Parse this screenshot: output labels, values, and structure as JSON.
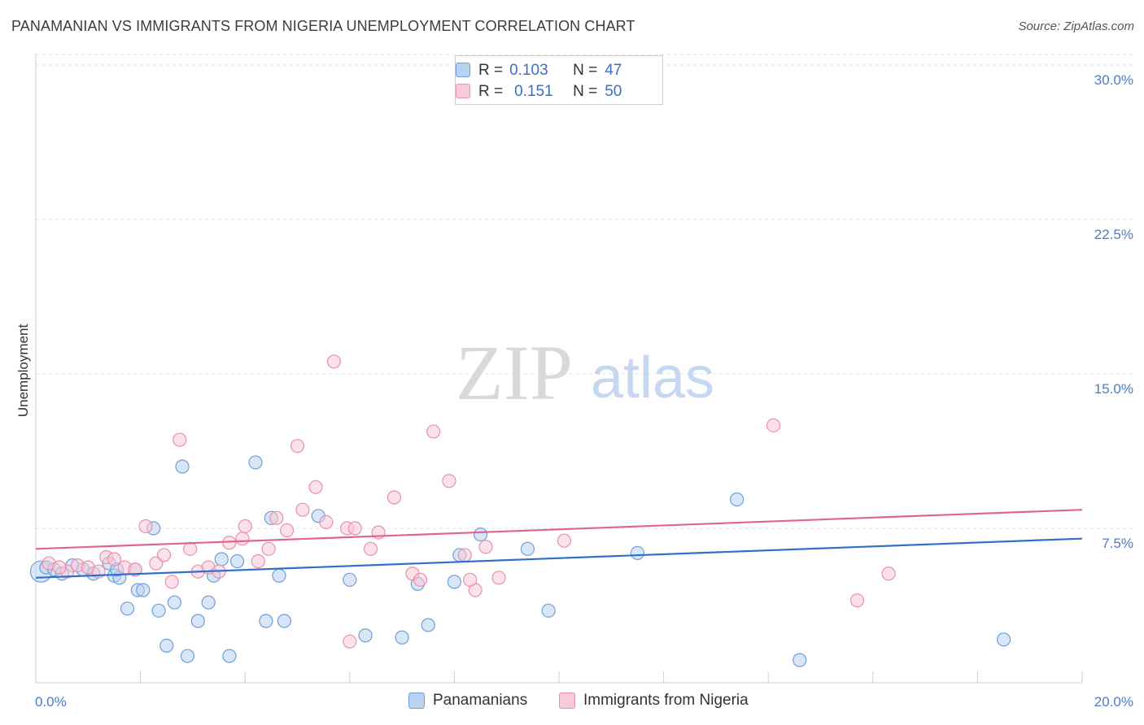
{
  "title": "PANAMANIAN VS IMMIGRANTS FROM NIGERIA UNEMPLOYMENT CORRELATION CHART",
  "source": "Source: ZipAtlas.com",
  "watermark": {
    "zip": "ZIP",
    "atlas": "atlas"
  },
  "legend_top": [
    {
      "r_label": "R =",
      "r_value": "0.103",
      "n_label": "N =",
      "n_value": "47"
    },
    {
      "r_label": "R =",
      "r_value": "0.151",
      "n_label": "N =",
      "n_value": "50"
    }
  ],
  "chart_data": {
    "type": "scatter",
    "title": "PANAMANIAN VS IMMIGRANTS FROM NIGERIA UNEMPLOYMENT CORRELATION CHART",
    "xlabel": "",
    "ylabel": "Unemployment",
    "xlim": [
      0,
      20
    ],
    "ylim": [
      0,
      30.5
    ],
    "x_tick_labels": {
      "start": "0.0%",
      "end": "20.0%"
    },
    "y_ticks": [
      {
        "value": 7.5,
        "label": "7.5%"
      },
      {
        "value": 15.0,
        "label": "15.0%"
      },
      {
        "value": 22.5,
        "label": "22.5%"
      },
      {
        "value": 30.0,
        "label": "30.0%"
      }
    ],
    "grid": true,
    "series": [
      {
        "name": "Panamanians",
        "color": "#6e9fd9",
        "fill": "#b9d2f1",
        "trend_color": "#2f6fcc",
        "trend": {
          "x": [
            0,
            20
          ],
          "y": [
            5.1,
            7.0
          ]
        },
        "points": [
          {
            "x": 0.1,
            "y": 5.4,
            "big": true
          },
          {
            "x": 0.2,
            "y": 5.6
          },
          {
            "x": 0.35,
            "y": 5.5
          },
          {
            "x": 0.5,
            "y": 5.3
          },
          {
            "x": 0.7,
            "y": 5.7
          },
          {
            "x": 0.9,
            "y": 5.5
          },
          {
            "x": 1.1,
            "y": 5.3
          },
          {
            "x": 1.4,
            "y": 5.8
          },
          {
            "x": 1.5,
            "y": 5.2
          },
          {
            "x": 1.6,
            "y": 5.1
          },
          {
            "x": 1.55,
            "y": 5.5
          },
          {
            "x": 1.9,
            "y": 5.5
          },
          {
            "x": 1.75,
            "y": 3.6
          },
          {
            "x": 1.95,
            "y": 4.5
          },
          {
            "x": 2.05,
            "y": 4.5
          },
          {
            "x": 2.25,
            "y": 7.5
          },
          {
            "x": 2.35,
            "y": 3.5
          },
          {
            "x": 2.5,
            "y": 1.8
          },
          {
            "x": 2.65,
            "y": 3.9
          },
          {
            "x": 2.8,
            "y": 10.5
          },
          {
            "x": 2.9,
            "y": 1.3
          },
          {
            "x": 3.1,
            "y": 3.0
          },
          {
            "x": 3.3,
            "y": 3.9
          },
          {
            "x": 3.4,
            "y": 5.2
          },
          {
            "x": 3.55,
            "y": 6.0
          },
          {
            "x": 3.7,
            "y": 1.3
          },
          {
            "x": 3.85,
            "y": 5.9
          },
          {
            "x": 4.2,
            "y": 10.7
          },
          {
            "x": 4.4,
            "y": 3.0
          },
          {
            "x": 4.5,
            "y": 8.0
          },
          {
            "x": 4.65,
            "y": 5.2
          },
          {
            "x": 4.75,
            "y": 3.0
          },
          {
            "x": 5.4,
            "y": 8.1
          },
          {
            "x": 6.0,
            "y": 5.0
          },
          {
            "x": 6.3,
            "y": 2.3
          },
          {
            "x": 7.0,
            "y": 2.2
          },
          {
            "x": 7.3,
            "y": 4.8
          },
          {
            "x": 7.5,
            "y": 2.8
          },
          {
            "x": 8.1,
            "y": 6.2
          },
          {
            "x": 8.0,
            "y": 4.9
          },
          {
            "x": 8.5,
            "y": 7.2
          },
          {
            "x": 9.4,
            "y": 6.5
          },
          {
            "x": 9.8,
            "y": 3.5
          },
          {
            "x": 11.5,
            "y": 6.3
          },
          {
            "x": 13.4,
            "y": 8.9
          },
          {
            "x": 14.6,
            "y": 1.1
          },
          {
            "x": 18.5,
            "y": 2.1
          }
        ]
      },
      {
        "name": "Immigrants from Nigeria",
        "color": "#e98fab",
        "fill": "#f8c9d7",
        "trend_color": "#e0648e",
        "trend": {
          "x": [
            0,
            20
          ],
          "y": [
            6.5,
            8.4
          ]
        },
        "points": [
          {
            "x": 0.25,
            "y": 5.8
          },
          {
            "x": 0.6,
            "y": 5.4
          },
          {
            "x": 0.8,
            "y": 5.7
          },
          {
            "x": 1.0,
            "y": 5.6
          },
          {
            "x": 1.2,
            "y": 5.4
          },
          {
            "x": 1.35,
            "y": 6.1
          },
          {
            "x": 1.5,
            "y": 6.0
          },
          {
            "x": 1.7,
            "y": 5.6
          },
          {
            "x": 1.9,
            "y": 5.5
          },
          {
            "x": 2.1,
            "y": 7.6
          },
          {
            "x": 2.3,
            "y": 5.8
          },
          {
            "x": 2.45,
            "y": 6.2
          },
          {
            "x": 2.6,
            "y": 4.9
          },
          {
            "x": 2.75,
            "y": 11.8
          },
          {
            "x": 2.95,
            "y": 6.5
          },
          {
            "x": 3.1,
            "y": 5.4
          },
          {
            "x": 3.3,
            "y": 5.6
          },
          {
            "x": 3.5,
            "y": 5.4
          },
          {
            "x": 3.7,
            "y": 6.8
          },
          {
            "x": 3.95,
            "y": 7.0
          },
          {
            "x": 4.0,
            "y": 7.6
          },
          {
            "x": 4.25,
            "y": 5.9
          },
          {
            "x": 4.45,
            "y": 6.5
          },
          {
            "x": 4.6,
            "y": 8.0
          },
          {
            "x": 4.8,
            "y": 7.4
          },
          {
            "x": 5.0,
            "y": 11.5
          },
          {
            "x": 5.1,
            "y": 8.4
          },
          {
            "x": 5.35,
            "y": 9.5
          },
          {
            "x": 5.55,
            "y": 7.8
          },
          {
            "x": 5.7,
            "y": 15.6
          },
          {
            "x": 5.95,
            "y": 7.5
          },
          {
            "x": 6.0,
            "y": 2.0
          },
          {
            "x": 6.1,
            "y": 7.5
          },
          {
            "x": 6.4,
            "y": 6.5
          },
          {
            "x": 6.55,
            "y": 7.3
          },
          {
            "x": 6.85,
            "y": 9.0
          },
          {
            "x": 7.2,
            "y": 5.3
          },
          {
            "x": 7.35,
            "y": 5.0
          },
          {
            "x": 7.6,
            "y": 12.2
          },
          {
            "x": 8.2,
            "y": 6.2
          },
          {
            "x": 8.4,
            "y": 4.5
          },
          {
            "x": 8.6,
            "y": 6.6
          },
          {
            "x": 8.85,
            "y": 5.1
          },
          {
            "x": 7.9,
            "y": 9.8
          },
          {
            "x": 8.3,
            "y": 5.0
          },
          {
            "x": 10.1,
            "y": 6.9
          },
          {
            "x": 14.1,
            "y": 12.5
          },
          {
            "x": 15.7,
            "y": 4.0
          },
          {
            "x": 16.3,
            "y": 5.3
          },
          {
            "x": 0.45,
            "y": 5.6
          }
        ]
      }
    ]
  }
}
